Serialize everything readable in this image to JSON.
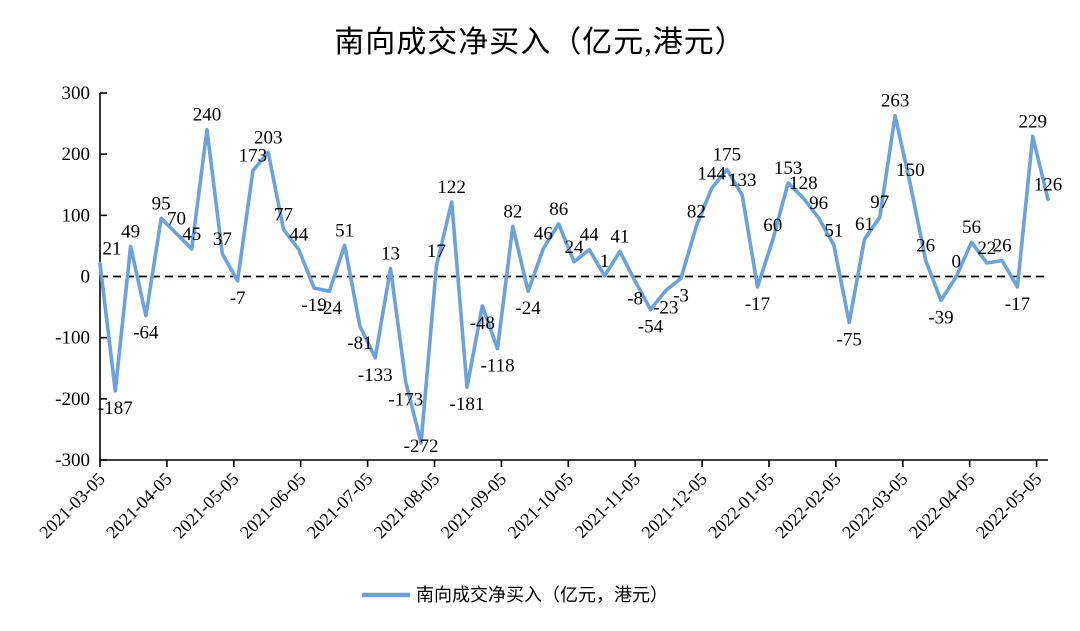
{
  "title": "南向成交净买入（亿元,港元）",
  "legend": {
    "label": "南向成交净买入（亿元，港元）"
  },
  "colors": {
    "line": "#6CA2D9",
    "axis": "#000000",
    "zero_line": "#000000",
    "background": "#FFFFFF",
    "text": "#000000"
  },
  "chart_data": {
    "type": "line",
    "title": "南向成交净买入（亿元,港元）",
    "ylabel": "",
    "xlabel": "",
    "ylim": [
      -300,
      300
    ],
    "y_tick_labels": [
      "300",
      "200",
      "100",
      "0",
      "-100",
      "-200",
      "-300"
    ],
    "y_tick_values": [
      300,
      200,
      100,
      0,
      -100,
      -200,
      -300
    ],
    "x_tick_labels": [
      "2021-03-05",
      "2021-04-05",
      "2021-05-05",
      "2021-06-05",
      "2021-07-05",
      "2021-08-05",
      "2021-09-05",
      "2021-10-05",
      "2021-11-05",
      "2021-12-05",
      "2022-01-05",
      "2022-02-05",
      "2022-03-05",
      "2022-04-05",
      "2022-05-05"
    ],
    "grid": false,
    "zero_line_dashed": true,
    "data_labels_shown": true,
    "legend_position": "bottom",
    "series": [
      {
        "name": "南向成交净买入（亿元，港元）",
        "values": [
          21,
          -187,
          49,
          -64,
          95,
          70,
          45,
          240,
          37,
          -7,
          173,
          203,
          77,
          44,
          -19,
          -24,
          51,
          -81,
          -133,
          13,
          -173,
          -272,
          17,
          122,
          -181,
          -48,
          -118,
          82,
          -24,
          46,
          86,
          24,
          44,
          1,
          41,
          -8,
          -54,
          -23,
          -3,
          82,
          144,
          175,
          133,
          -17,
          60,
          153,
          128,
          96,
          51,
          -75,
          61,
          97,
          263,
          150,
          26,
          -39,
          0,
          56,
          22,
          26,
          -17,
          229,
          126
        ]
      }
    ]
  }
}
